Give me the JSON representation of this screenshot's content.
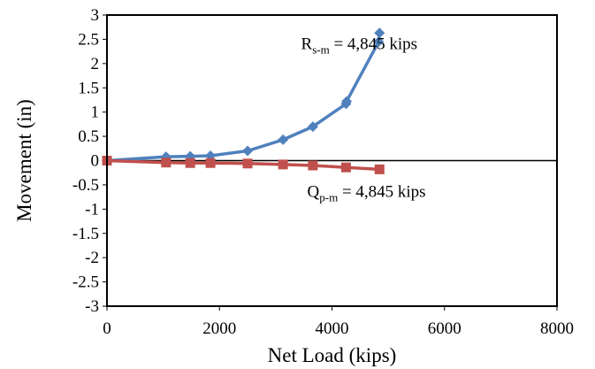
{
  "chart_data": {
    "type": "scatter",
    "xlabel": "Net Load (kips)",
    "ylabel": "Movement (in)",
    "xlim": [
      0,
      8000
    ],
    "ylim": [
      -3,
      3
    ],
    "x_ticks": [
      "0",
      "2000",
      "4000",
      "6000",
      "8000"
    ],
    "y_ticks": [
      "3",
      "2.5",
      "2",
      "1.5",
      "1",
      "0.5",
      "0",
      "-0.5",
      "-1",
      "-1.5",
      "-2",
      "-2.5",
      "-3"
    ],
    "grid": false,
    "legend": "none",
    "zero_line": true,
    "series": [
      {
        "color": "#4f81bd",
        "marker": "diamond",
        "points": [
          [
            0,
            0.0
          ],
          [
            1050,
            0.08
          ],
          [
            1480,
            0.09
          ],
          [
            1840,
            0.1
          ],
          [
            2500,
            0.2
          ],
          [
            3130,
            0.43
          ],
          [
            3660,
            0.7
          ],
          [
            4250,
            1.17
          ],
          [
            4260,
            1.22
          ],
          [
            4830,
            2.45
          ],
          [
            4845,
            2.63
          ]
        ]
      },
      {
        "color": "#c0504d",
        "marker": "square",
        "points": [
          [
            0,
            0.0
          ],
          [
            1050,
            -0.04
          ],
          [
            1480,
            -0.05
          ],
          [
            1840,
            -0.05
          ],
          [
            2500,
            -0.06
          ],
          [
            3130,
            -0.08
          ],
          [
            3660,
            -0.1
          ],
          [
            4250,
            -0.14
          ],
          [
            4845,
            -0.18
          ]
        ]
      }
    ],
    "annotations": [
      {
        "main": "R",
        "sub": "s-m",
        "rest": " = 4,845 kips",
        "at": [
          3450,
          2.3
        ]
      },
      {
        "main": "Q",
        "sub": "p-m",
        "rest": " = 4,845 kips",
        "at": [
          3560,
          -0.75
        ]
      }
    ]
  }
}
